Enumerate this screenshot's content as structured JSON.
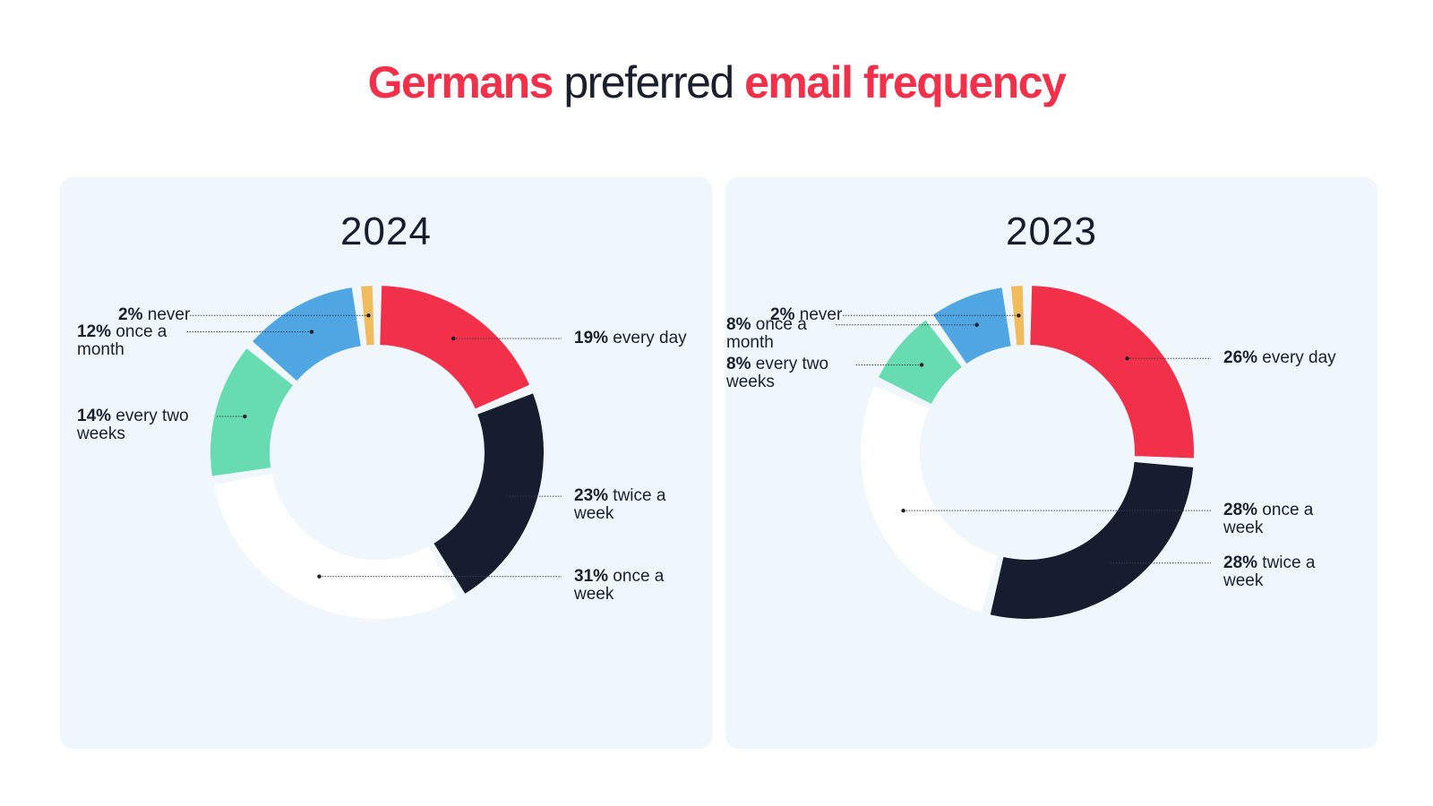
{
  "title": {
    "part1": "Germans",
    "part2": " preferred ",
    "part3": "email frequency"
  },
  "colors": {
    "accent": "#f2304a",
    "every_day": "#f2304a",
    "twice_a_week": "#151d2e",
    "once_a_week": "#ffffff",
    "every_two_weeks": "#67dcb0",
    "once_a_month": "#4fa6e3",
    "never": "#f1bd5c",
    "panel_bg": "#eff7fd"
  },
  "chart_data": [
    {
      "type": "pie",
      "title": "2024",
      "categories": [
        "every day",
        "twice a week",
        "once a week",
        "every two weeks",
        "once a month",
        "never"
      ],
      "values": [
        19,
        23,
        31,
        14,
        12,
        2
      ],
      "labels": [
        {
          "pct": "19%",
          "text": " every day"
        },
        {
          "pct": "23%",
          "text": " twice a week"
        },
        {
          "pct": "31%",
          "text": " once a week"
        },
        {
          "pct": "14%",
          "text": " every two weeks"
        },
        {
          "pct": "12%",
          "text": " once a month"
        },
        {
          "pct": "2%",
          "text": " never"
        }
      ]
    },
    {
      "type": "pie",
      "title": "2023",
      "categories": [
        "every day",
        "twice a week",
        "once a week",
        "every two weeks",
        "once a month",
        "never"
      ],
      "values": [
        26,
        28,
        28,
        8,
        8,
        2
      ],
      "labels": [
        {
          "pct": "26%",
          "text": " every day"
        },
        {
          "pct": "28%",
          "text": " twice a week"
        },
        {
          "pct": "28%",
          "text": " once a week"
        },
        {
          "pct": "8%",
          "text": " every two weeks"
        },
        {
          "pct": "8%",
          "text": " once a month"
        },
        {
          "pct": "2%",
          "text": " never"
        }
      ]
    }
  ]
}
